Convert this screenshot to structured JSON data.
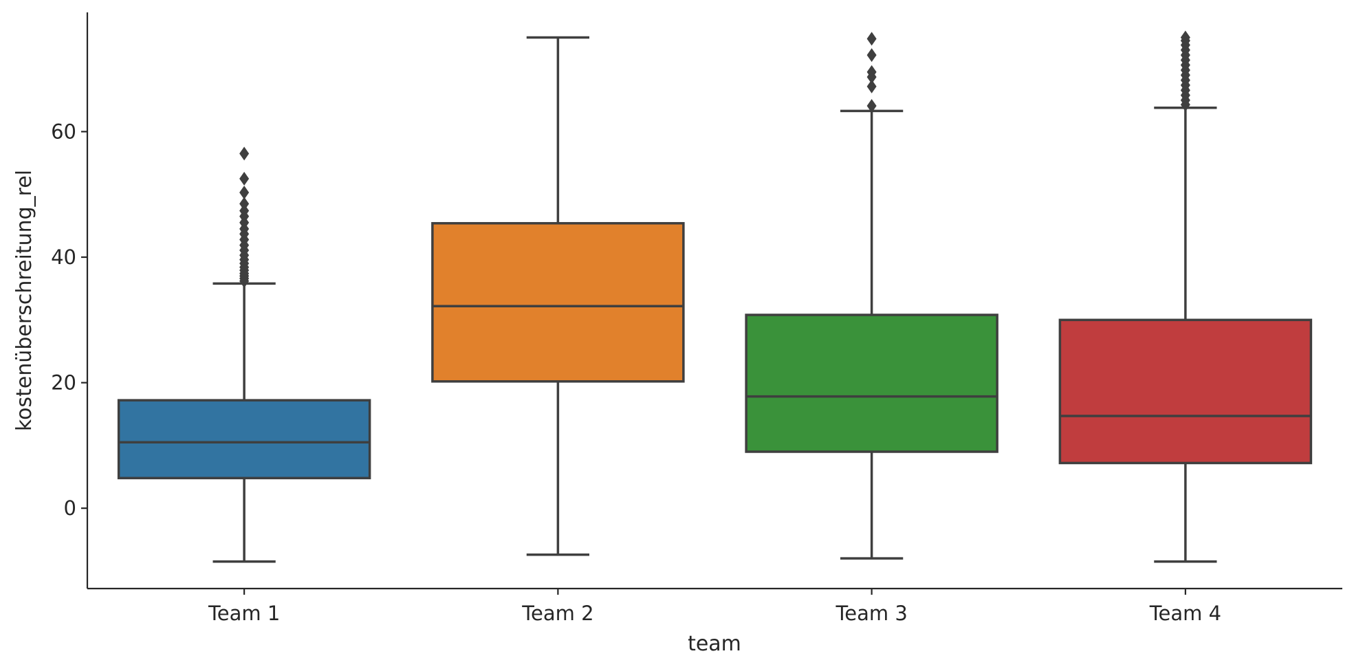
{
  "chart_data": {
    "type": "box",
    "title": "",
    "xlabel": "team",
    "ylabel": "kostenüberschreitung_rel",
    "categories": [
      "Team 1",
      "Team 2",
      "Team 3",
      "Team 4"
    ],
    "ylim": [
      -12.8,
      79
    ],
    "yticks": [
      0,
      20,
      40,
      60
    ],
    "grid": false,
    "legend": "none",
    "series": [
      {
        "category": "Team 1",
        "color": "#3274a1",
        "whisker_low": -8.5,
        "q1": 4.8,
        "median": 10.5,
        "q3": 17.2,
        "whisker_high": 35.8,
        "outliers": [
          36.2,
          36.6,
          37.0,
          37.4,
          37.9,
          38.4,
          39.0,
          39.6,
          40.3,
          41.1,
          41.9,
          42.8,
          43.7,
          44.5,
          45.5,
          46.5,
          47.4,
          48.5,
          50.3,
          52.5,
          56.5
        ]
      },
      {
        "category": "Team 2",
        "color": "#e1812c",
        "whisker_low": -7.4,
        "q1": 20.2,
        "median": 32.2,
        "q3": 45.4,
        "whisker_high": 75.0,
        "outliers": []
      },
      {
        "category": "Team 3",
        "color": "#3a923a",
        "whisker_low": -8.0,
        "q1": 9.0,
        "median": 17.8,
        "q3": 30.8,
        "whisker_high": 63.3,
        "outliers": [
          64.1,
          67.2,
          68.7,
          69.5,
          72.2,
          74.8
        ]
      },
      {
        "category": "Team 4",
        "color": "#c03d3e",
        "whisker_low": -8.5,
        "q1": 7.2,
        "median": 14.7,
        "q3": 30.0,
        "whisker_high": 63.8,
        "outliers": [
          64.3,
          65.0,
          65.8,
          66.6,
          67.4,
          68.2,
          69.0,
          69.8,
          70.6,
          71.4,
          72.2,
          73.0,
          73.8,
          74.5,
          75.0
        ]
      }
    ]
  }
}
